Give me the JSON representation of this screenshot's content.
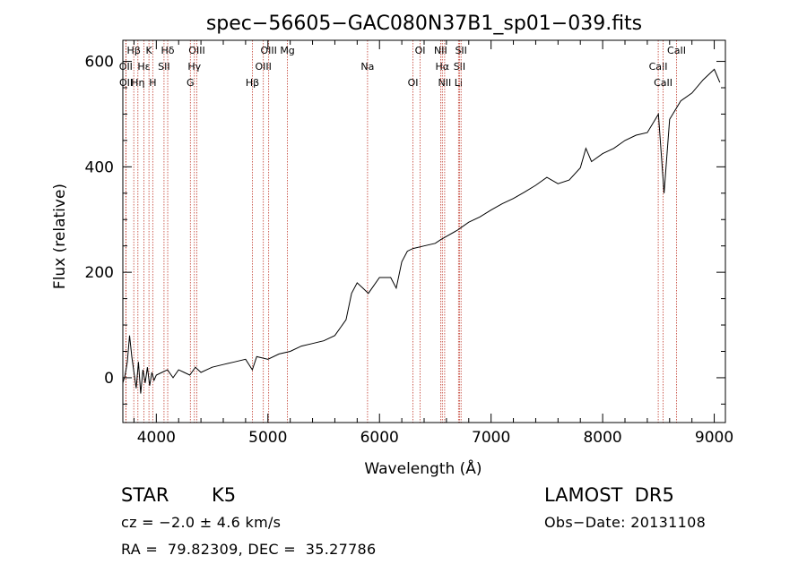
{
  "chart_data": {
    "type": "line",
    "title": "spec−56605−GAC080N37B1_sp01−039.fits",
    "xlabel": "Wavelength (Å)",
    "ylabel": "Flux (relative)",
    "xlim": [
      3700,
      9100
    ],
    "ylim": [
      -85,
      640
    ],
    "xticks": [
      4000,
      5000,
      6000,
      7000,
      8000,
      9000
    ],
    "yticks": [
      0,
      200,
      400,
      600
    ],
    "grid": false,
    "series": [
      {
        "x": [
          3700,
          3720,
          3740,
          3760,
          3780,
          3800,
          3820,
          3840,
          3860,
          3880,
          3900,
          3920,
          3940,
          3960,
          3980,
          4000,
          4050,
          4100,
          4150,
          4200,
          4250,
          4300,
          4350,
          4400,
          4500,
          4600,
          4700,
          4800,
          4860,
          4900,
          5000,
          5100,
          5200,
          5300,
          5400,
          5500,
          5600,
          5700,
          5750,
          5800,
          5850,
          5900,
          6000,
          6100,
          6150,
          6200,
          6250,
          6300,
          6400,
          6500,
          6550,
          6600,
          6700,
          6800,
          6900,
          7000,
          7100,
          7200,
          7300,
          7400,
          7500,
          7600,
          7700,
          7800,
          7850,
          7900,
          8000,
          8100,
          8200,
          8300,
          8400,
          8500,
          8550,
          8600,
          8700,
          8800,
          8900,
          9000,
          9050
        ],
        "y": [
          -10,
          5,
          30,
          80,
          40,
          10,
          -20,
          30,
          -30,
          15,
          -10,
          20,
          -15,
          10,
          -5,
          5,
          10,
          15,
          0,
          15,
          10,
          5,
          20,
          10,
          20,
          25,
          30,
          35,
          15,
          40,
          35,
          45,
          50,
          60,
          65,
          70,
          80,
          110,
          160,
          180,
          170,
          160,
          190,
          190,
          170,
          220,
          240,
          245,
          250,
          255,
          262,
          268,
          280,
          295,
          305,
          318,
          330,
          340,
          352,
          365,
          380,
          368,
          375,
          398,
          435,
          410,
          425,
          435,
          450,
          460,
          465,
          500,
          350,
          490,
          525,
          540,
          565,
          585,
          560
        ]
      }
    ],
    "line_markers": {
      "labels": [
        "Hβ",
        "OII",
        "OII",
        "K",
        "Hε",
        "Hη",
        "Hδ",
        "SII",
        "H",
        "OIII",
        "Hγ",
        "G",
        "OIII",
        "OIII",
        "Hβ",
        "Mg",
        "Na",
        "OI",
        "OI",
        "Hα",
        "NII",
        "NII",
        "SII",
        "Li",
        "SII",
        "CaII",
        "CaII",
        "CaII"
      ],
      "wavelengths": [
        3798,
        3727,
        3729,
        3934,
        3889,
        3835,
        4102,
        4069,
        3968,
        4363,
        4341,
        4305,
        5007,
        4959,
        4861,
        5175,
        5893,
        6300,
        6364,
        6563,
        6584,
        6548,
        6717,
        6708,
        6731,
        8498,
        8542,
        8662
      ]
    }
  },
  "info": {
    "object_class": "STAR",
    "subclass": "K5",
    "survey": "LAMOST  DR5",
    "cz": "cz = −2.0 ± 4.6 km/s",
    "obs_date": "Obs−Date: 20131108",
    "coords": "RA =  79.82309, DEC =  35.27786"
  }
}
